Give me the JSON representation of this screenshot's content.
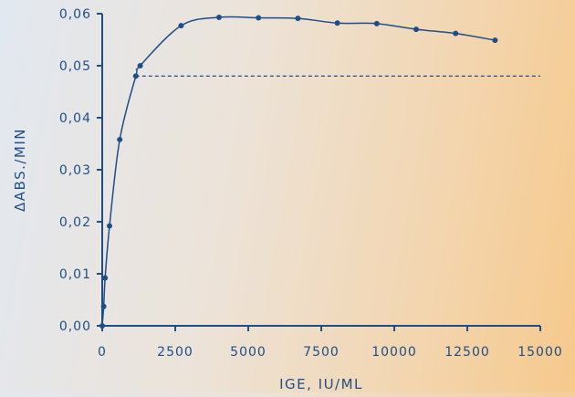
{
  "chart_data": {
    "type": "line",
    "title": "",
    "xlabel": "IgE, IU/mL",
    "ylabel": "ΔAbs./min",
    "xlim": [
      0,
      15000
    ],
    "ylim": [
      0,
      0.06
    ],
    "x_ticks": [
      0,
      2500,
      5000,
      7500,
      10000,
      12500,
      15000
    ],
    "x_tick_labels": [
      "0",
      "2500",
      "5000",
      "7500",
      "10000",
      "12500",
      "15000"
    ],
    "y_ticks": [
      0,
      0.01,
      0.02,
      0.03,
      0.04,
      0.05,
      0.06
    ],
    "y_tick_labels": [
      "0,00",
      "0,01",
      "0,02",
      "0,03",
      "0,04",
      "0,05",
      "0,06"
    ],
    "grid": false,
    "series": [
      {
        "x": [
          0,
          50,
          100,
          250,
          600,
          1150,
          1300,
          2700,
          4000,
          5350,
          6700,
          8050,
          9400,
          10750,
          12100,
          13450
        ],
        "y": [
          0.0,
          0.0037,
          0.0092,
          0.0192,
          0.0358,
          0.048,
          0.05,
          0.0577,
          0.0593,
          0.0592,
          0.0591,
          0.0582,
          0.0581,
          0.057,
          0.0562,
          0.0549
        ]
      }
    ],
    "reference_line": {
      "y": 0.048,
      "x_start": 1150,
      "x_end": 15000,
      "style": "dashed"
    },
    "colors": {
      "line": "#1f4e86",
      "axis": "#1f4e86",
      "text": "#1f4e86"
    }
  }
}
